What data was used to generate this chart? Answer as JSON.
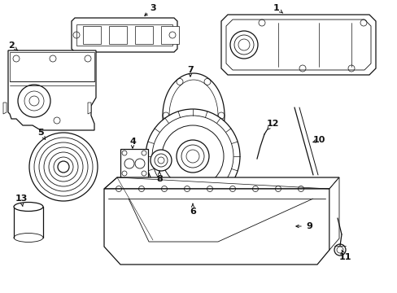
{
  "bg_color": "#ffffff",
  "line_color": "#111111",
  "lw": 0.9,
  "figsize": [
    4.89,
    3.6
  ],
  "dpi": 100
}
